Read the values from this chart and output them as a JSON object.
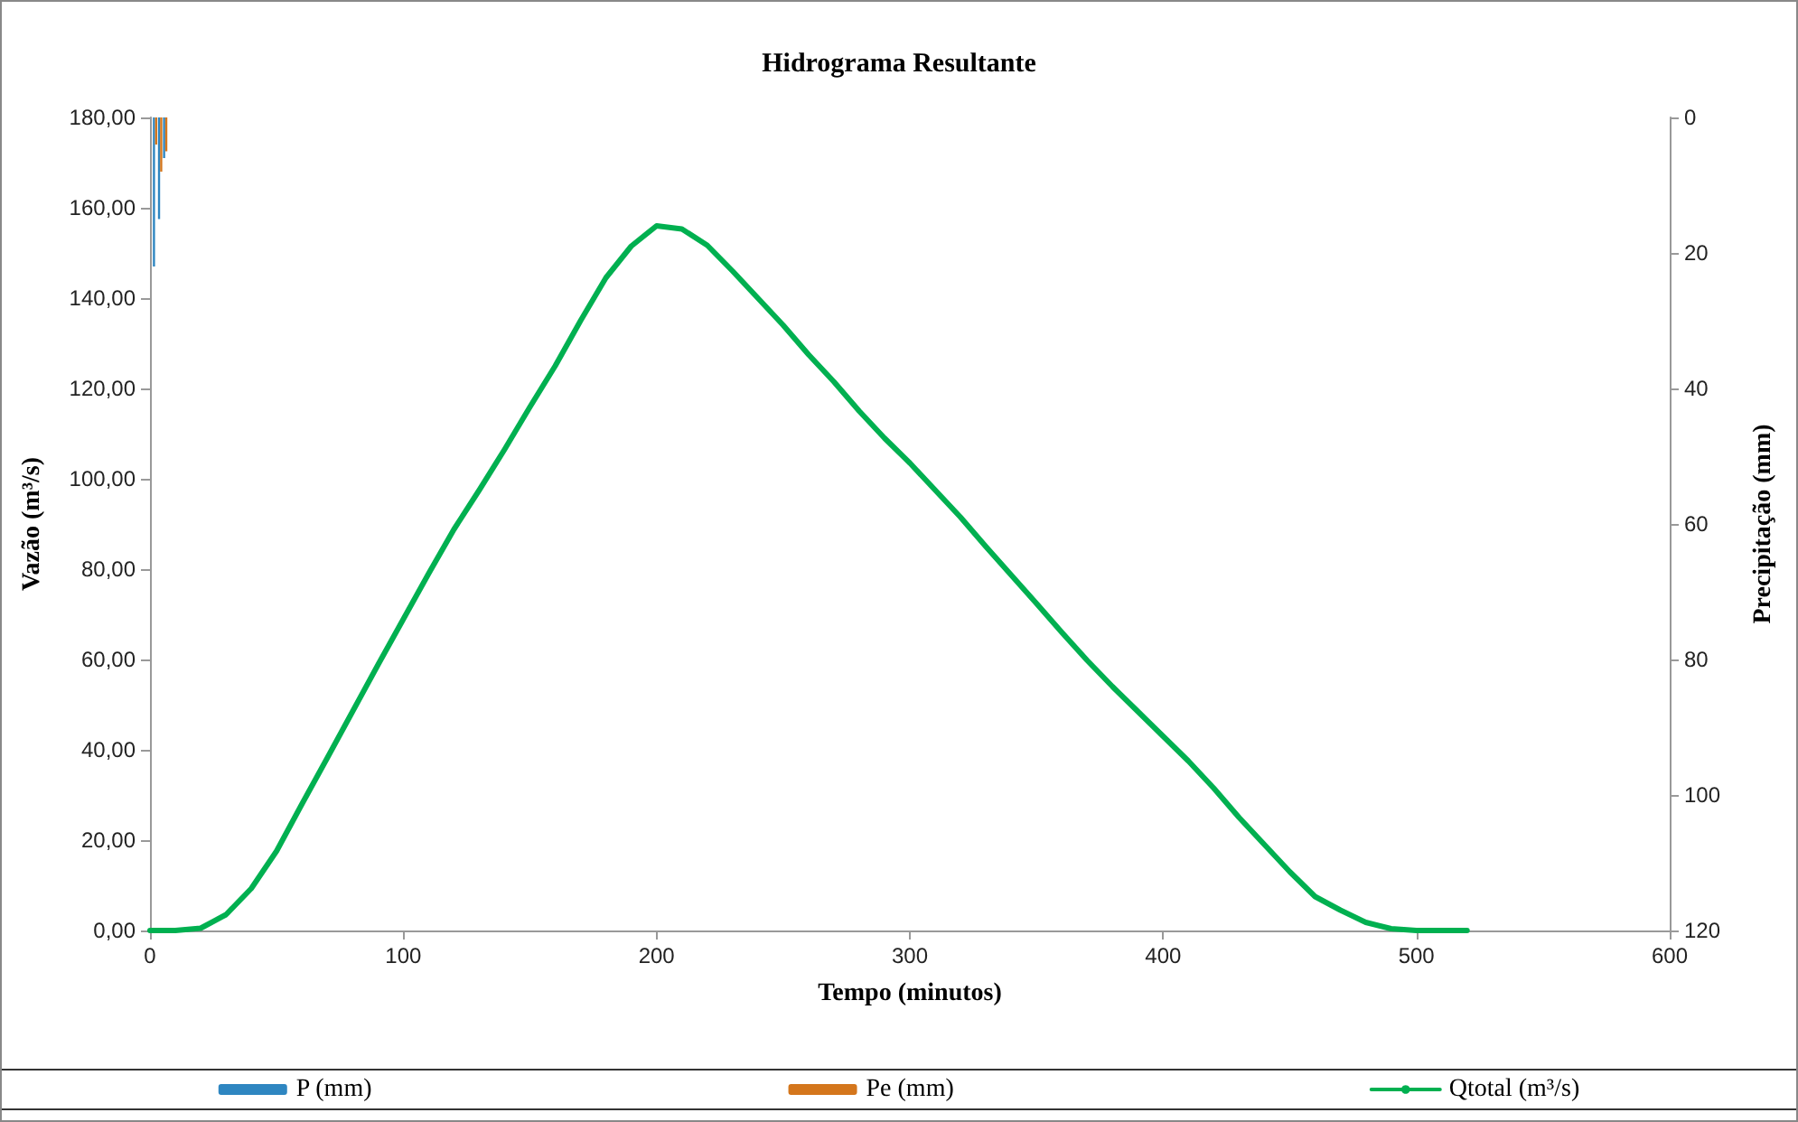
{
  "chart_data": {
    "type": "line",
    "title": "Hidrograma Resultante",
    "xlabel": "Tempo (minutos)",
    "ylabel": "Vazão (m³/s)",
    "y2label": "Precipitação (mm)",
    "xlim": [
      0,
      600
    ],
    "xticks": [
      0,
      100,
      200,
      300,
      400,
      500,
      600
    ],
    "ylim": [
      0,
      180
    ],
    "yticks": [
      {
        "value": 0,
        "label": "0,00"
      },
      {
        "value": 20,
        "label": "20,00"
      },
      {
        "value": 40,
        "label": "40,00"
      },
      {
        "value": 60,
        "label": "60,00"
      },
      {
        "value": 80,
        "label": "80,00"
      },
      {
        "value": 100,
        "label": "100,00"
      },
      {
        "value": 120,
        "label": "120,00"
      },
      {
        "value": 140,
        "label": "140,00"
      },
      {
        "value": 160,
        "label": "160,00"
      },
      {
        "value": 180,
        "label": "180,00"
      }
    ],
    "y2lim": [
      120,
      0
    ],
    "y2ticks": [
      0,
      20,
      40,
      60,
      80,
      100,
      120
    ],
    "grid": false,
    "legend": "bottom",
    "marker": "none",
    "series": [
      {
        "name": "P (mm)",
        "type": "bar",
        "axis": "y2",
        "color": "#2e86c1",
        "x": [
          2,
          4,
          6
        ],
        "values": [
          22,
          15,
          6
        ]
      },
      {
        "name": "Pe (mm)",
        "type": "bar",
        "axis": "y2",
        "color": "#d4761c",
        "x": [
          2,
          4,
          6
        ],
        "values": [
          4,
          8,
          5
        ]
      },
      {
        "name": "Qtotal (m³/s)",
        "color": "#00b050",
        "line_style": "solid",
        "x": [
          0,
          10,
          20,
          30,
          40,
          50,
          60,
          70,
          80,
          90,
          100,
          110,
          120,
          130,
          140,
          150,
          160,
          170,
          180,
          190,
          200,
          210,
          220,
          230,
          240,
          250,
          260,
          270,
          280,
          290,
          300,
          310,
          320,
          330,
          340,
          350,
          360,
          370,
          380,
          390,
          400,
          410,
          420,
          430,
          440,
          450,
          460,
          470,
          480,
          490,
          500,
          510,
          520
        ],
        "values": [
          0,
          0,
          0.5,
          3.5,
          9.3,
          17.6,
          28,
          38.2,
          48.5,
          58.8,
          68.9,
          79,
          88.8,
          97.5,
          106.5,
          115.9,
          125,
          135,
          144.5,
          151.5,
          156,
          155.3,
          151.7,
          146,
          140,
          134,
          127.5,
          121.5,
          115,
          109,
          103.5,
          97.5,
          91.5,
          85,
          78.7,
          72.4,
          66,
          59.8,
          54,
          48.5,
          43,
          37.5,
          31.5,
          25,
          19,
          13,
          7.5,
          4.5,
          1.8,
          0.4,
          0,
          0,
          0
        ]
      }
    ]
  }
}
